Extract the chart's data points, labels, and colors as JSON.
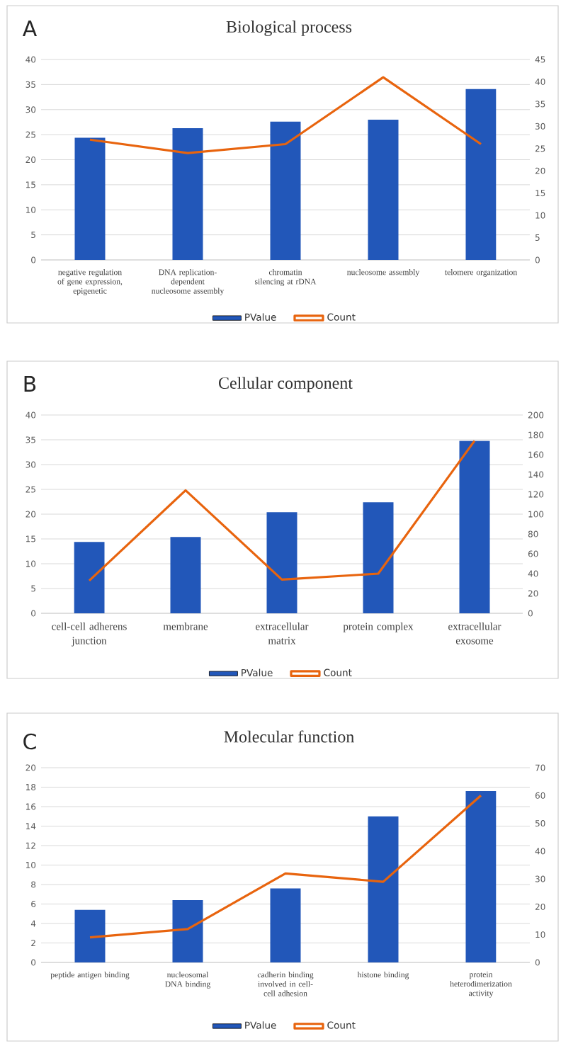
{
  "chart_data": [
    {
      "type": "bar",
      "title": "Biological process",
      "annotations": [
        "A"
      ],
      "categories": [
        "negative regulation of gene expression, epigenetic",
        "DNA replication-dependent nucleosome assembly",
        "chromatin silencing at rDNA",
        "nucleosome assembly",
        "telomere organization"
      ],
      "series": [
        {
          "name": "PValue",
          "color": "#2257b9",
          "values": [
            24.4,
            26.3,
            27.6,
            28.0,
            34.1
          ]
        },
        {
          "name": "Count",
          "type": "line",
          "axis": "y2",
          "color": "#e8640e",
          "values": [
            27,
            24,
            26,
            41,
            26
          ]
        }
      ],
      "ylim": [
        0,
        40
      ],
      "yticks": [
        0,
        5,
        10,
        15,
        20,
        25,
        30,
        35,
        40
      ],
      "y2lim": [
        0,
        45
      ],
      "y2ticks": [
        0,
        5,
        10,
        15,
        20,
        25,
        30,
        35,
        40,
        45
      ],
      "grid": "y",
      "legend": "bottom"
    },
    {
      "type": "bar",
      "title": "Cellular component",
      "annotations": [
        "B"
      ],
      "categories": [
        "cell-cell adherens junction",
        "membrane",
        "extracellular matrix",
        "protein complex",
        "extracellular exosome"
      ],
      "series": [
        {
          "name": "PValue",
          "color": "#2257b9",
          "values": [
            14.4,
            15.4,
            20.4,
            22.4,
            34.8
          ]
        },
        {
          "name": "Count",
          "type": "line",
          "axis": "y2",
          "color": "#e8640e",
          "values": [
            33,
            124,
            34,
            40,
            174
          ]
        }
      ],
      "ylim": [
        0,
        40
      ],
      "yticks": [
        0,
        5,
        10,
        15,
        20,
        25,
        30,
        35,
        40
      ],
      "y2lim": [
        0,
        200
      ],
      "y2ticks": [
        0,
        20,
        40,
        60,
        80,
        100,
        120,
        140,
        160,
        180,
        200
      ],
      "grid": "y",
      "legend": "bottom"
    },
    {
      "type": "bar",
      "title": "Molecular function",
      "annotations": [
        "C"
      ],
      "categories": [
        "peptide antigen binding",
        "nucleosomal DNA binding",
        "cadherin binding involved in cell-cell adhesion",
        "histone binding",
        "protein heterodimerization activity"
      ],
      "series": [
        {
          "name": "PValue",
          "color": "#2257b9",
          "values": [
            5.4,
            6.4,
            7.6,
            15.0,
            17.6
          ]
        },
        {
          "name": "Count",
          "type": "line",
          "axis": "y2",
          "color": "#e8640e",
          "values": [
            9,
            12,
            32,
            29,
            60
          ]
        }
      ],
      "ylim": [
        0,
        20
      ],
      "yticks": [
        0,
        2,
        4,
        6,
        8,
        10,
        12,
        14,
        16,
        18,
        20
      ],
      "y2lim": [
        0,
        70
      ],
      "y2ticks": [
        0,
        10,
        20,
        30,
        40,
        50,
        60,
        70
      ],
      "grid": "y",
      "legend": "bottom"
    }
  ]
}
